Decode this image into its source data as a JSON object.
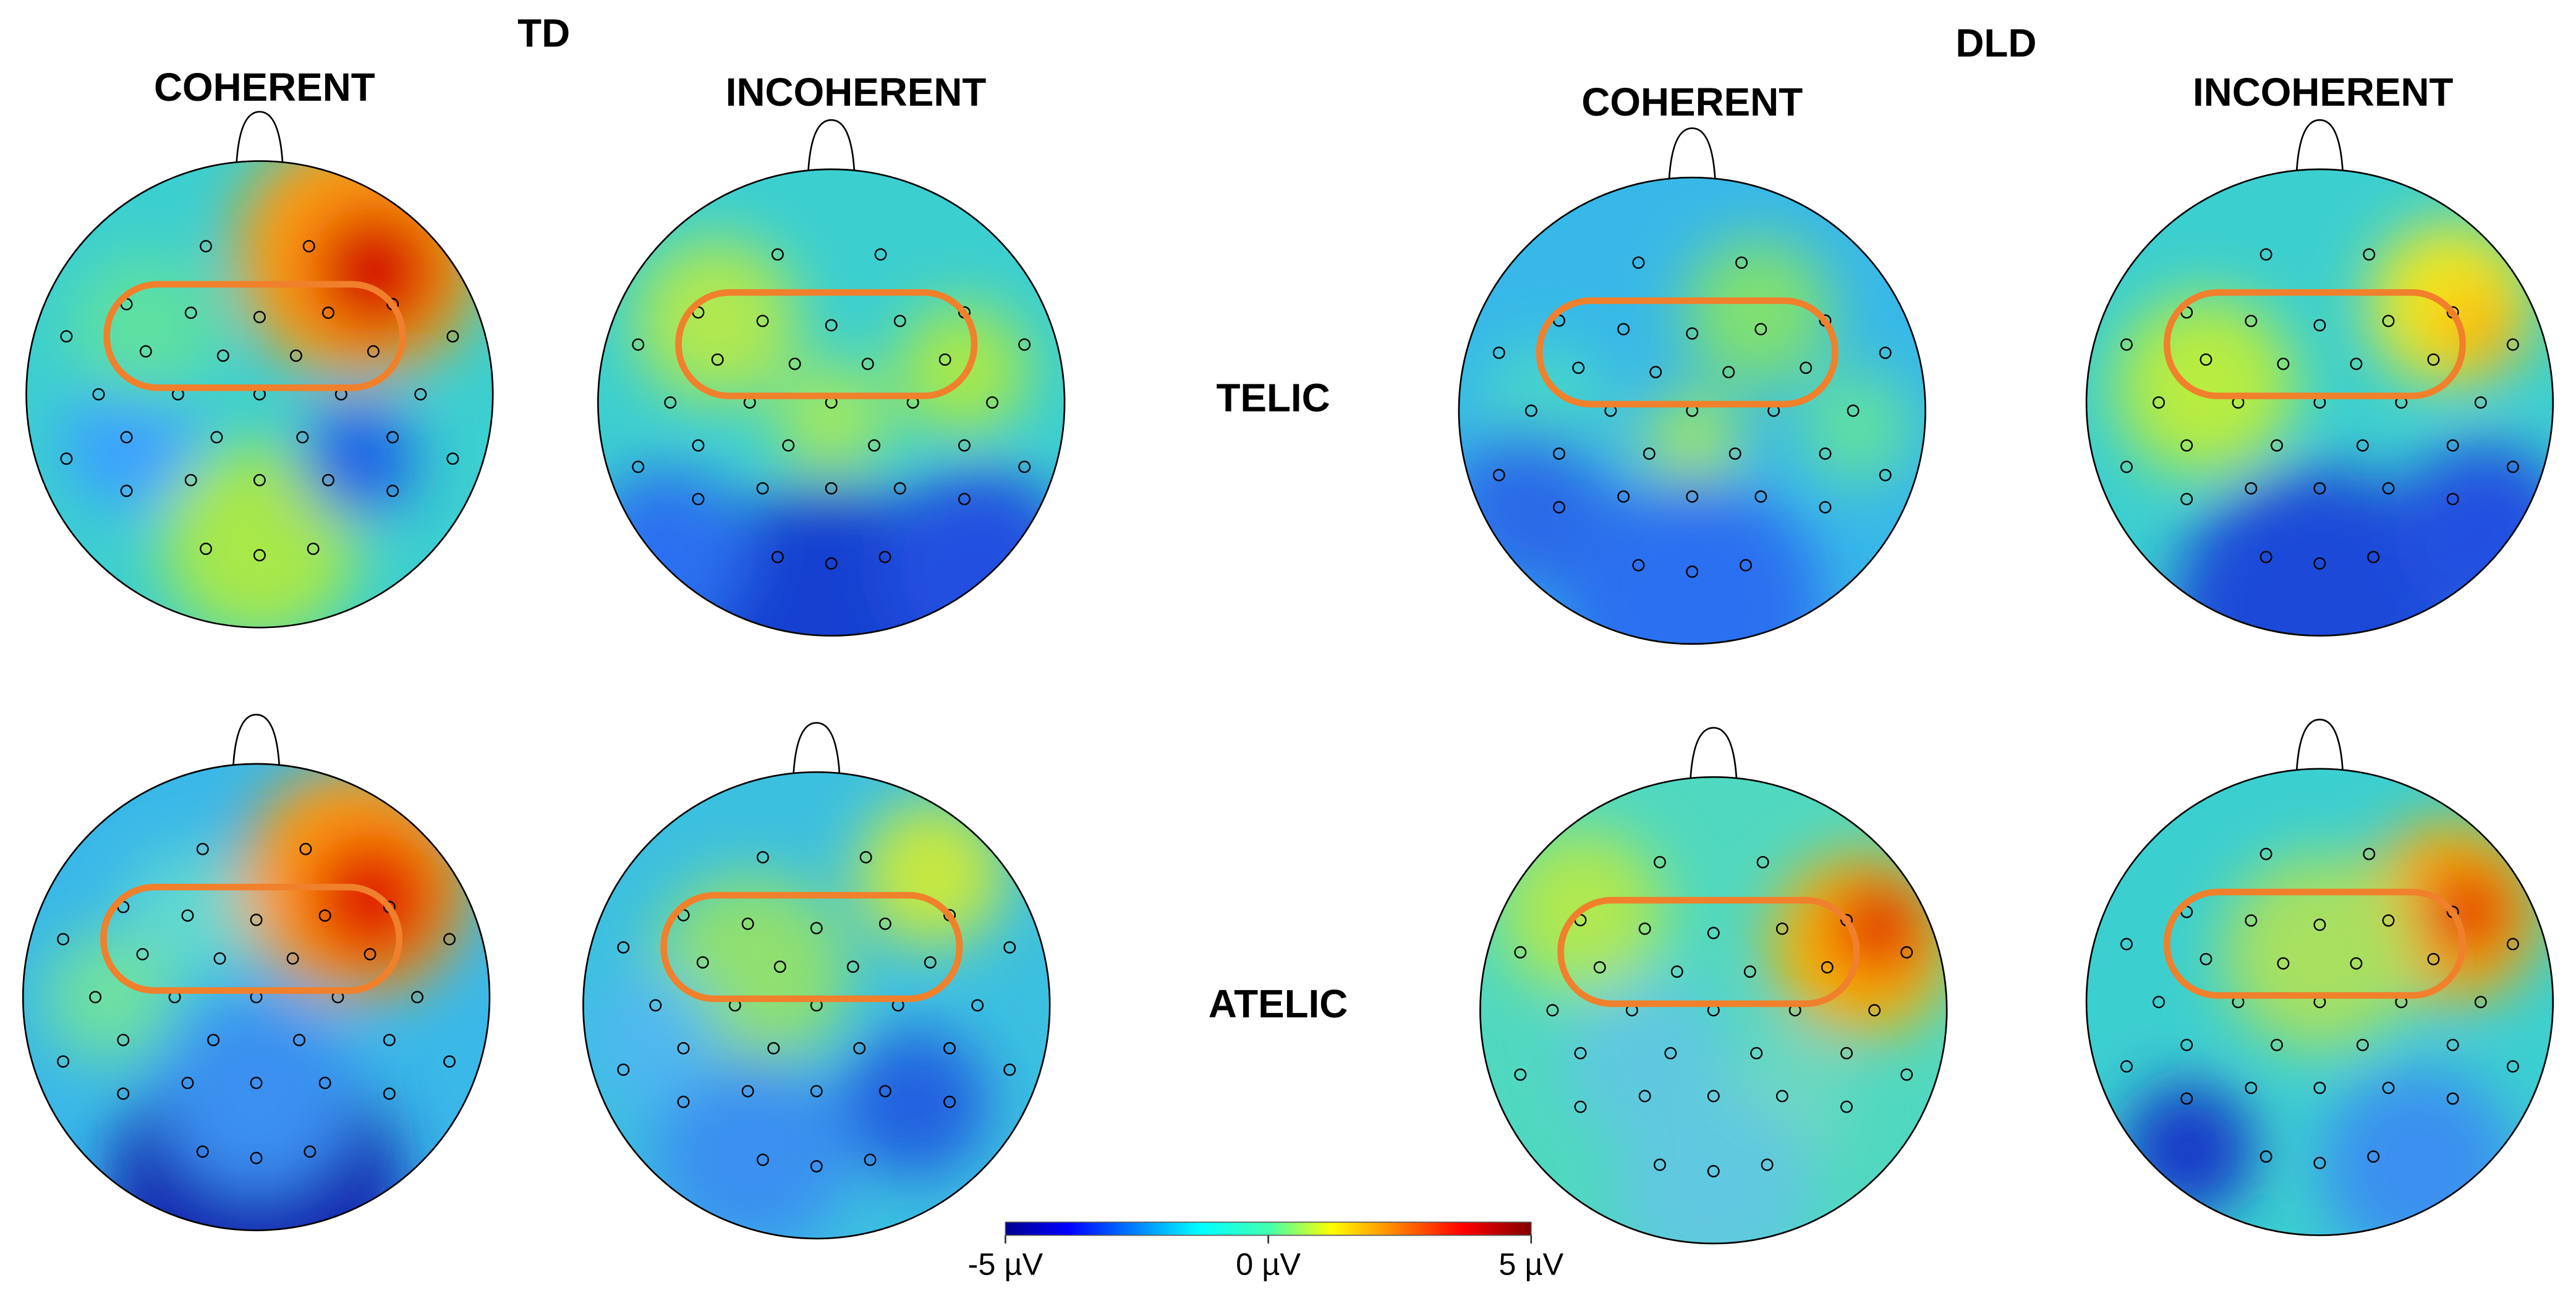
{
  "groups": [
    "TD",
    "DLD"
  ],
  "columns": [
    "COHERENT",
    "INCOHERENT",
    "COHERENT",
    "INCOHERENT"
  ],
  "rows": [
    "TELIC",
    "ATELIC"
  ],
  "colorbar": {
    "lim": [
      -5,
      5
    ],
    "ticks": [
      {
        "value": -5,
        "label": "-5 µV"
      },
      {
        "value": 0,
        "label": "0 µV"
      },
      {
        "value": 5,
        "label": "5 µV"
      }
    ]
  }
}
